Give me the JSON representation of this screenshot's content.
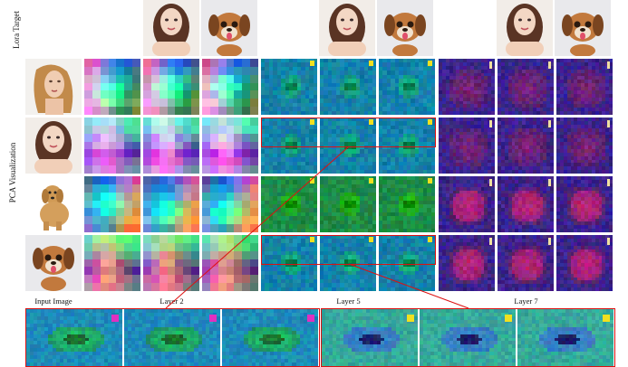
{
  "labels": {
    "lora_target": "Lora Target",
    "pca_visualization": "PCA Visualization",
    "col_input": "Input Image",
    "col_layer2": "Layer 2",
    "col_layer5": "Layer 5",
    "col_layer7": "Layer 7"
  },
  "colors": {
    "highlight": "#dd1111",
    "layer2_palette": [
      "#ff33cc",
      "#33ff66",
      "#3366ff",
      "#cc33ff",
      "#66ff33",
      "#33ccff",
      "#ffcc33"
    ],
    "layer5_palette": [
      "#1a8fb0",
      "#2ebd6b",
      "#0f5a9e",
      "#5ad060",
      "#0b2d5a"
    ],
    "layer7_palette": [
      "#3b1a8a",
      "#7a1a4a",
      "#1a1a5a",
      "#b0204a",
      "#5020a0"
    ]
  },
  "figure": {
    "lora_targets": [
      "girl-portrait",
      "puppy-cartoon"
    ],
    "rows": [
      "woman-photo",
      "girl-cartoon",
      "dog-photo",
      "puppy-cartoon"
    ]
  }
}
